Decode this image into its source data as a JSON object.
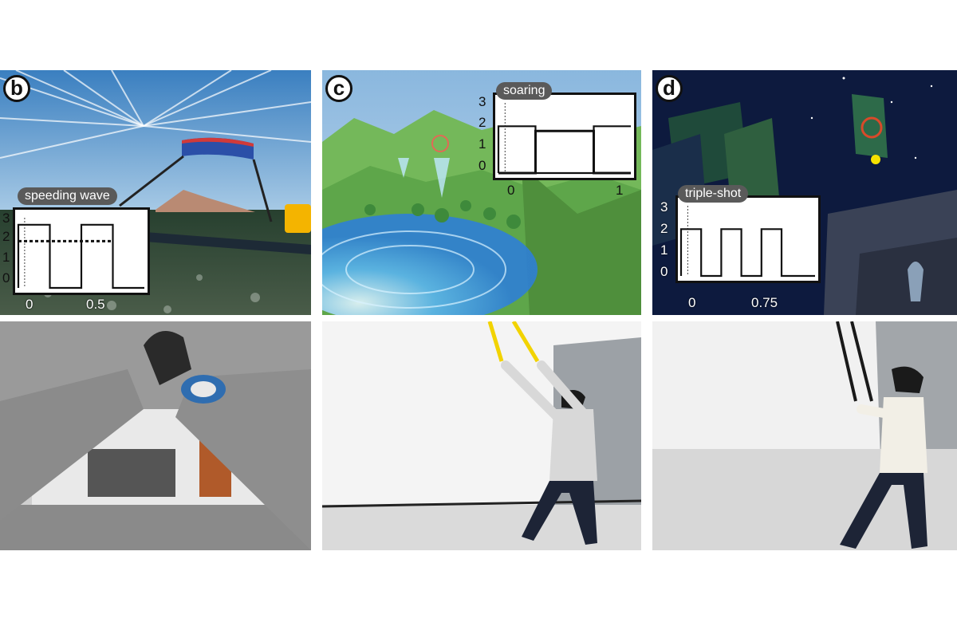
{
  "panels": [
    {
      "label": "b",
      "scene": "kite surfing over the sea",
      "inset": {
        "title": "speeding wave",
        "y_ticks": [
          "3",
          "2",
          "1",
          "0"
        ],
        "x_ticks": [
          "0",
          "0.5"
        ]
      }
    },
    {
      "label": "c",
      "scene": "gliding over green hills",
      "inset": {
        "title": "soaring",
        "y_ticks": [
          "3",
          "2",
          "1",
          "0"
        ],
        "x_ticks": [
          "0",
          "1"
        ]
      }
    },
    {
      "label": "d",
      "scene": "night city shooting",
      "inset": {
        "title": "triple-shot",
        "y_ticks": [
          "3",
          "2",
          "1",
          "0"
        ],
        "x_ticks": [
          "0",
          "0.75"
        ]
      }
    }
  ],
  "chart_data": [
    {
      "type": "line",
      "title": "speeding wave",
      "x_ticks": [
        0,
        0.5
      ],
      "y_ticks": [
        0,
        1,
        2,
        3
      ],
      "series": [
        {
          "x": [
            0,
            0,
            0.25,
            0.25,
            0.5,
            0.5,
            0.75,
            0.75,
            1.0
          ],
          "y": [
            0,
            2.7,
            2.7,
            0,
            0,
            2.7,
            2.7,
            0,
            0
          ]
        },
        {
          "x": [
            0,
            0.25,
            0.5,
            0.75
          ],
          "y": [
            2.0,
            2.0,
            2.0,
            2.0
          ]
        }
      ]
    },
    {
      "type": "line",
      "title": "soaring",
      "x_ticks": [
        0,
        1
      ],
      "y_ticks": [
        0,
        1,
        2,
        3
      ],
      "series": [
        {
          "x": [
            0,
            0,
            0.28,
            0.28,
            0.72,
            0.72,
            1.0
          ],
          "y": [
            0,
            2.0,
            2.0,
            0,
            0,
            2.0,
            2.0
          ]
        },
        {
          "x": [
            0,
            0.28,
            0.28,
            0.72,
            0.72,
            1.0
          ],
          "y": [
            0,
            0,
            1.8,
            1.8,
            0,
            0
          ]
        }
      ]
    },
    {
      "type": "line",
      "title": "triple-shot",
      "x_ticks": [
        0,
        0.75
      ],
      "y_ticks": [
        0,
        1,
        2,
        3
      ],
      "series": [
        {
          "x": [
            0,
            0,
            0.15,
            0.15,
            0.3,
            0.3,
            0.45,
            0.45,
            0.6,
            0.6,
            0.75,
            0.75,
            1.0
          ],
          "y": [
            0,
            2.0,
            2.0,
            0,
            0,
            2.0,
            2.0,
            0,
            0,
            2.0,
            2.0,
            0,
            0
          ]
        }
      ]
    }
  ]
}
